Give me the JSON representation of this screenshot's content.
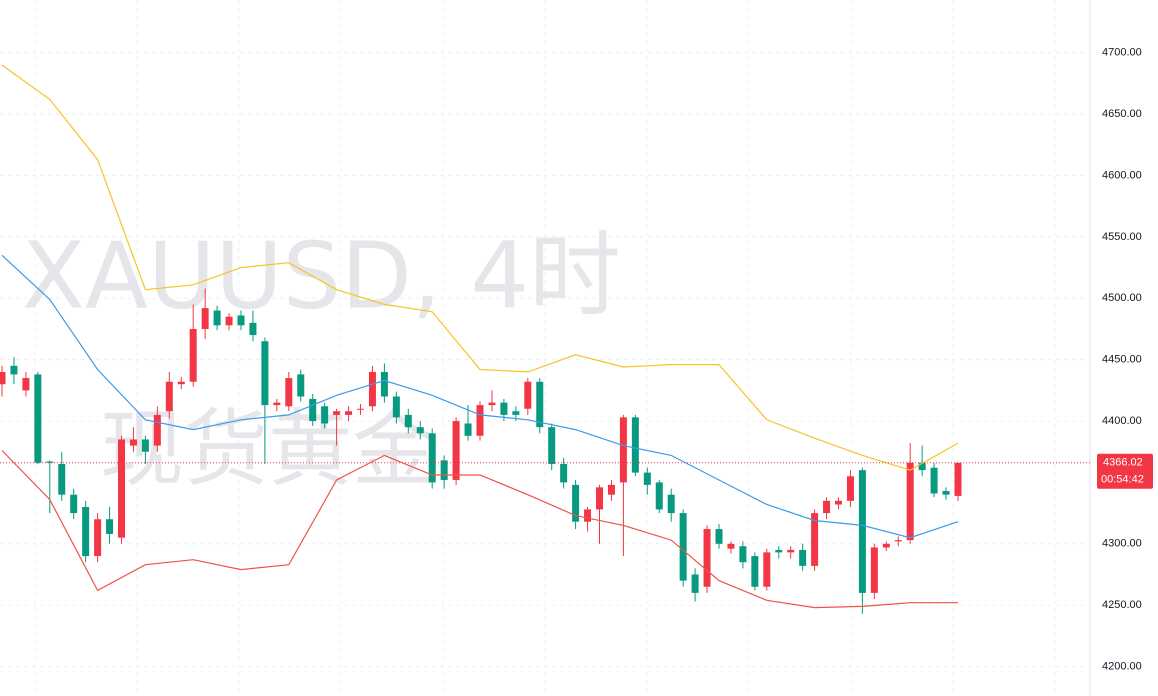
{
  "chart_data": {
    "type": "candlestick",
    "watermark": [
      "XAUUSD, 4时",
      "现货黄金"
    ],
    "up_color": "#f23645",
    "down_color": "#089981",
    "open": [
      4430,
      4445,
      4425,
      4438,
      4367,
      4365,
      4340,
      4330,
      4290,
      4320,
      4305,
      4380,
      4385,
      4380,
      4408,
      4430,
      4432,
      4475,
      4490,
      4478,
      4486,
      4480,
      4465,
      4413,
      4412,
      4438,
      4418,
      4412,
      4405,
      4405,
      4410,
      4412,
      4440,
      4420,
      4405,
      4395,
      4390,
      4368,
      4352,
      4398,
      4388,
      4413,
      4415,
      4408,
      4410,
      4432,
      4395,
      4365,
      4348,
      4318,
      4328,
      4340,
      4350,
      4403,
      4358,
      4350,
      4340,
      4325,
      4275,
      4265,
      4312,
      4296,
      4298,
      4290,
      4265,
      4295,
      4293,
      4295,
      4282,
      4325,
      4332,
      4335,
      4360,
      4260,
      4297,
      4302,
      4303,
      4366,
      4362,
      4343,
      4339
    ],
    "high": [
      4445,
      4452,
      4440,
      4440,
      4368,
      4375,
      4345,
      4335,
      4325,
      4330,
      4388,
      4395,
      4388,
      4412,
      4440,
      4436,
      4495,
      4508,
      4494,
      4488,
      4490,
      4490,
      4468,
      4418,
      4440,
      4442,
      4422,
      4415,
      4410,
      4412,
      4414,
      4445,
      4447,
      4424,
      4410,
      4400,
      4394,
      4372,
      4403,
      4413,
      4416,
      4425,
      4418,
      4412,
      4435,
      4435,
      4398,
      4370,
      4352,
      4330,
      4348,
      4352,
      4405,
      4405,
      4362,
      4352,
      4345,
      4328,
      4280,
      4315,
      4316,
      4302,
      4302,
      4293,
      4296,
      4298,
      4298,
      4300,
      4328,
      4338,
      4338,
      4360,
      4362,
      4300,
      4302,
      4306,
      4382,
      4380,
      4366,
      4346,
      4366
    ],
    "low": [
      4420,
      4430,
      4420,
      4365,
      4325,
      4335,
      4320,
      4285,
      4285,
      4300,
      4300,
      4375,
      4365,
      4375,
      4402,
      4426,
      4428,
      4467,
      4474,
      4474,
      4474,
      4465,
      4365,
      4408,
      4408,
      4416,
      4396,
      4394,
      4380,
      4400,
      4405,
      4408,
      4415,
      4398,
      4390,
      4385,
      4345,
      4345,
      4348,
      4384,
      4384,
      4408,
      4400,
      4400,
      4405,
      4390,
      4360,
      4345,
      4312,
      4310,
      4300,
      4335,
      4290,
      4355,
      4340,
      4325,
      4318,
      4265,
      4253,
      4260,
      4296,
      4292,
      4280,
      4262,
      4262,
      4288,
      4288,
      4278,
      4278,
      4320,
      4328,
      4330,
      4243,
      4255,
      4294,
      4298,
      4300,
      4355,
      4338,
      4336,
      4335
    ],
    "close": [
      4440,
      4438,
      4435,
      4366,
      4366,
      4340,
      4325,
      4290,
      4320,
      4308,
      4385,
      4385,
      4375,
      4405,
      4432,
      4432,
      4475,
      4492,
      4478,
      4485,
      4478,
      4470,
      4413,
      4415,
      4435,
      4420,
      4400,
      4398,
      4408,
      4408,
      4410,
      4440,
      4420,
      4403,
      4395,
      4390,
      4350,
      4352,
      4400,
      4388,
      4413,
      4415,
      4405,
      4405,
      4432,
      4395,
      4365,
      4350,
      4318,
      4328,
      4346,
      4348,
      4403,
      4358,
      4348,
      4328,
      4325,
      4270,
      4260,
      4312,
      4300,
      4300,
      4285,
      4265,
      4293,
      4293,
      4295,
      4282,
      4325,
      4335,
      4335,
      4355,
      4260,
      4297,
      4300,
      4303,
      4366,
      4360,
      4341,
      4340,
      4366
    ],
    "lines": [
      {
        "color": "#f7c325",
        "x": [
          0,
          4,
          8,
          12,
          16,
          20,
          24,
          28,
          32,
          36,
          40,
          44,
          48,
          52,
          56,
          60,
          64,
          68,
          72,
          76,
          80
        ],
        "values": [
          4690,
          4662,
          4613,
          4507,
          4511,
          4525,
          4529,
          4507,
          4495,
          4489,
          4442,
          4440,
          4454,
          4444,
          4446,
          4446,
          4401,
          4386,
          4372,
          4360,
          4382
        ]
      },
      {
        "color": "#3d9be9",
        "x": [
          0,
          4,
          8,
          12,
          16,
          20,
          24,
          28,
          32,
          36,
          40,
          44,
          48,
          52,
          56,
          60,
          64,
          68,
          72,
          76,
          80
        ],
        "values": [
          4535,
          4499,
          4442,
          4401,
          4393,
          4401,
          4405,
          4421,
          4433,
          4421,
          4405,
          4401,
          4393,
          4380,
          4372,
          4352,
          4332,
          4319,
          4315,
          4305,
          4318
        ]
      },
      {
        "color": "#f0524a",
        "x": [
          0,
          4,
          8,
          12,
          16,
          20,
          24,
          28,
          32,
          36,
          40,
          44,
          48,
          52,
          56,
          60,
          64,
          68,
          72,
          76,
          80
        ],
        "values": [
          4376,
          4336,
          4262,
          4283,
          4287,
          4279,
          4283,
          4352,
          4372,
          4356,
          4356,
          4340,
          4323,
          4315,
          4303,
          4270,
          4254,
          4248,
          4249,
          4252,
          4252
        ]
      }
    ],
    "last_price": {
      "value": 4366.02,
      "label": "4366.02"
    },
    "countdown": "00:54:42",
    "ylim": [
      4176,
      4743
    ],
    "yticks": [
      {
        "value": 4200,
        "label": "4200.00"
      },
      {
        "value": 4250,
        "label": "4250.00"
      },
      {
        "value": 4300,
        "label": "4300.00"
      },
      {
        "value": 4400,
        "label": "4400.00"
      },
      {
        "value": 4450,
        "label": "4450.00"
      },
      {
        "value": 4500,
        "label": "4500.00"
      },
      {
        "value": 4550,
        "label": "4550.00"
      },
      {
        "value": 4600,
        "label": "4600.00"
      },
      {
        "value": 4650,
        "label": "4650.00"
      },
      {
        "value": 4700,
        "label": "4700.00"
      }
    ],
    "grid": true
  }
}
